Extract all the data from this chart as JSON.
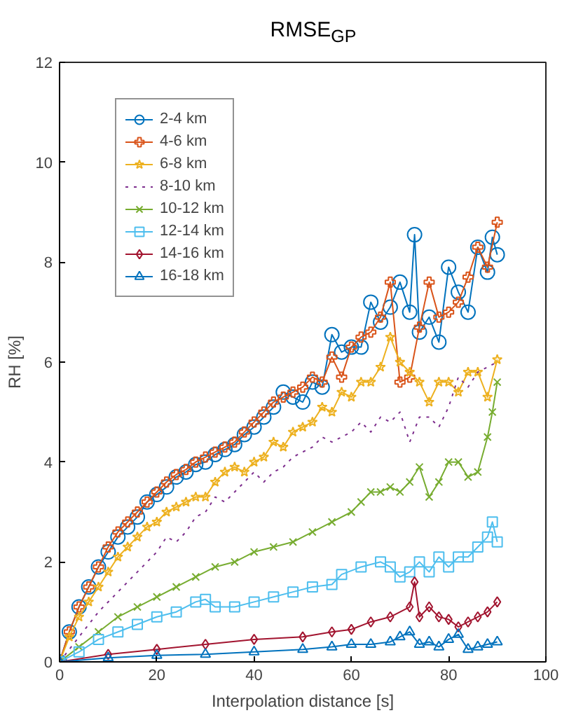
{
  "chart_data": {
    "type": "line",
    "title": "RMSE$_{GP}$",
    "xlabel": "Interpolation distance [s]",
    "ylabel": "RH [%]",
    "xlim": [
      0,
      100
    ],
    "xticks": [
      0,
      20,
      40,
      60,
      80,
      100
    ],
    "ylim": [
      0,
      12
    ],
    "yticks": [
      0,
      2,
      4,
      6,
      8,
      10,
      12
    ],
    "grid": false,
    "legend": "top left",
    "series": [
      {
        "name": "2-4 km",
        "color": "#0072bd",
        "marker": "circle",
        "x": [
          0,
          2,
          4,
          6,
          8,
          10,
          12,
          14,
          16,
          18,
          20,
          22,
          24,
          26,
          28,
          30,
          32,
          34,
          36,
          38,
          40,
          42,
          44,
          46,
          48,
          50,
          52,
          54,
          56,
          58,
          60,
          62,
          64,
          66,
          68,
          70,
          72,
          73,
          74,
          76,
          78,
          80,
          82,
          84,
          86,
          88,
          89,
          90
        ],
        "values": [
          0,
          0.6,
          1.1,
          1.5,
          1.9,
          2.2,
          2.5,
          2.7,
          2.9,
          3.2,
          3.35,
          3.5,
          3.7,
          3.8,
          3.95,
          4.0,
          4.15,
          4.25,
          4.35,
          4.55,
          4.7,
          4.9,
          5.1,
          5.4,
          5.3,
          5.2,
          5.6,
          5.5,
          6.55,
          6.2,
          6.3,
          6.3,
          7.2,
          6.8,
          7.1,
          7.6,
          7.0,
          8.55,
          6.6,
          6.9,
          6.4,
          7.9,
          7.4,
          7.0,
          8.3,
          7.8,
          8.5,
          8.15
        ]
      },
      {
        "name": "4-6 km",
        "color": "#d95319",
        "marker": "plus",
        "x": [
          0,
          2,
          4,
          6,
          8,
          10,
          12,
          14,
          16,
          18,
          20,
          22,
          24,
          26,
          28,
          30,
          32,
          34,
          36,
          38,
          40,
          42,
          44,
          46,
          48,
          50,
          52,
          54,
          56,
          58,
          60,
          62,
          64,
          66,
          68,
          70,
          72,
          74,
          76,
          78,
          80,
          82,
          84,
          86,
          88,
          90
        ],
        "values": [
          0,
          0.6,
          1.1,
          1.5,
          1.9,
          2.3,
          2.6,
          2.8,
          3.0,
          3.2,
          3.4,
          3.6,
          3.75,
          3.85,
          4.0,
          4.1,
          4.2,
          4.3,
          4.4,
          4.6,
          4.8,
          5.0,
          5.2,
          5.3,
          5.4,
          5.5,
          5.7,
          5.6,
          6.1,
          5.7,
          6.3,
          6.5,
          6.6,
          6.9,
          7.6,
          5.6,
          5.7,
          6.7,
          7.6,
          6.9,
          7.0,
          7.2,
          7.7,
          8.3,
          7.9,
          8.8
        ]
      },
      {
        "name": "6-8 km",
        "color": "#edb120",
        "marker": "star",
        "x": [
          0,
          2,
          4,
          6,
          8,
          10,
          12,
          14,
          16,
          18,
          20,
          22,
          24,
          26,
          28,
          30,
          32,
          34,
          36,
          38,
          40,
          42,
          44,
          46,
          48,
          50,
          52,
          54,
          56,
          58,
          60,
          62,
          64,
          66,
          68,
          70,
          72,
          74,
          76,
          78,
          80,
          82,
          84,
          86,
          88,
          90
        ],
        "values": [
          0,
          0.5,
          0.9,
          1.2,
          1.5,
          1.8,
          2.1,
          2.3,
          2.5,
          2.7,
          2.8,
          3.0,
          3.1,
          3.2,
          3.3,
          3.3,
          3.6,
          3.8,
          3.9,
          3.8,
          4.0,
          4.1,
          4.4,
          4.3,
          4.6,
          4.7,
          4.8,
          5.1,
          5.0,
          5.4,
          5.3,
          5.6,
          5.6,
          5.9,
          6.5,
          6.0,
          5.8,
          5.6,
          5.2,
          5.6,
          5.6,
          5.4,
          5.8,
          5.8,
          5.3,
          6.05
        ]
      },
      {
        "name": "8-10 km",
        "color": "#7e2f8e",
        "marker": "none",
        "line_style": "dotted",
        "x": [
          0,
          4,
          8,
          12,
          16,
          20,
          22,
          24,
          26,
          28,
          30,
          32,
          34,
          36,
          38,
          40,
          42,
          44,
          46,
          48,
          50,
          52,
          54,
          56,
          58,
          60,
          62,
          64,
          66,
          68,
          70,
          72,
          74,
          76,
          78,
          80,
          82,
          84,
          86,
          88,
          90
        ],
        "values": [
          0,
          0.5,
          1.0,
          1.4,
          1.8,
          2.2,
          2.5,
          2.4,
          2.6,
          2.9,
          3.0,
          3.3,
          3.2,
          3.4,
          3.6,
          3.8,
          3.6,
          3.8,
          3.9,
          4.1,
          4.2,
          4.3,
          4.5,
          4.4,
          4.5,
          4.6,
          4.8,
          4.6,
          4.9,
          4.8,
          5.0,
          4.4,
          4.9,
          4.9,
          4.7,
          5.1,
          5.7,
          5.5,
          5.8,
          5.9,
          6.0
        ]
      },
      {
        "name": "10-12 km",
        "color": "#77ac30",
        "marker": "x",
        "x": [
          0,
          4,
          8,
          12,
          16,
          20,
          24,
          28,
          32,
          36,
          40,
          44,
          48,
          52,
          56,
          60,
          62,
          64,
          66,
          68,
          70,
          72,
          74,
          76,
          78,
          80,
          82,
          84,
          86,
          88,
          89,
          90
        ],
        "values": [
          0,
          0.3,
          0.6,
          0.9,
          1.1,
          1.3,
          1.5,
          1.7,
          1.9,
          2.0,
          2.2,
          2.3,
          2.4,
          2.6,
          2.8,
          3.0,
          3.2,
          3.4,
          3.4,
          3.5,
          3.4,
          3.6,
          3.9,
          3.3,
          3.6,
          4.0,
          4.0,
          3.7,
          3.8,
          4.5,
          5.0,
          5.6
        ]
      },
      {
        "name": "12-14 km",
        "color": "#4dbeee",
        "marker": "square",
        "x": [
          0,
          4,
          8,
          12,
          16,
          20,
          24,
          28,
          30,
          32,
          36,
          40,
          44,
          48,
          52,
          56,
          58,
          62,
          66,
          68,
          70,
          72,
          74,
          76,
          78,
          80,
          82,
          84,
          86,
          88,
          89,
          90
        ],
        "values": [
          0,
          0.2,
          0.45,
          0.6,
          0.75,
          0.9,
          1.0,
          1.2,
          1.25,
          1.1,
          1.1,
          1.2,
          1.3,
          1.4,
          1.5,
          1.55,
          1.75,
          1.9,
          2.0,
          1.9,
          1.7,
          1.8,
          2.0,
          1.8,
          2.1,
          1.9,
          2.1,
          2.1,
          2.3,
          2.5,
          2.8,
          2.4
        ]
      },
      {
        "name": "14-16 km",
        "color": "#a2142f",
        "marker": "diamond",
        "x": [
          0,
          10,
          20,
          30,
          40,
          50,
          56,
          60,
          64,
          68,
          72,
          73,
          74,
          76,
          78,
          80,
          82,
          84,
          86,
          88,
          90
        ],
        "values": [
          0,
          0.15,
          0.25,
          0.35,
          0.45,
          0.5,
          0.6,
          0.65,
          0.8,
          0.9,
          1.1,
          1.6,
          0.9,
          1.1,
          0.9,
          0.85,
          0.7,
          0.8,
          0.9,
          1.0,
          1.2
        ]
      },
      {
        "name": "16-18 km",
        "color": "#0072bd",
        "marker": "triangle",
        "x": [
          0,
          10,
          20,
          30,
          40,
          50,
          56,
          60,
          64,
          68,
          70,
          72,
          74,
          76,
          78,
          80,
          82,
          84,
          86,
          88,
          90
        ],
        "values": [
          0,
          0.08,
          0.13,
          0.15,
          0.2,
          0.25,
          0.3,
          0.35,
          0.35,
          0.4,
          0.5,
          0.6,
          0.35,
          0.4,
          0.3,
          0.45,
          0.55,
          0.25,
          0.3,
          0.35,
          0.4
        ]
      }
    ]
  }
}
